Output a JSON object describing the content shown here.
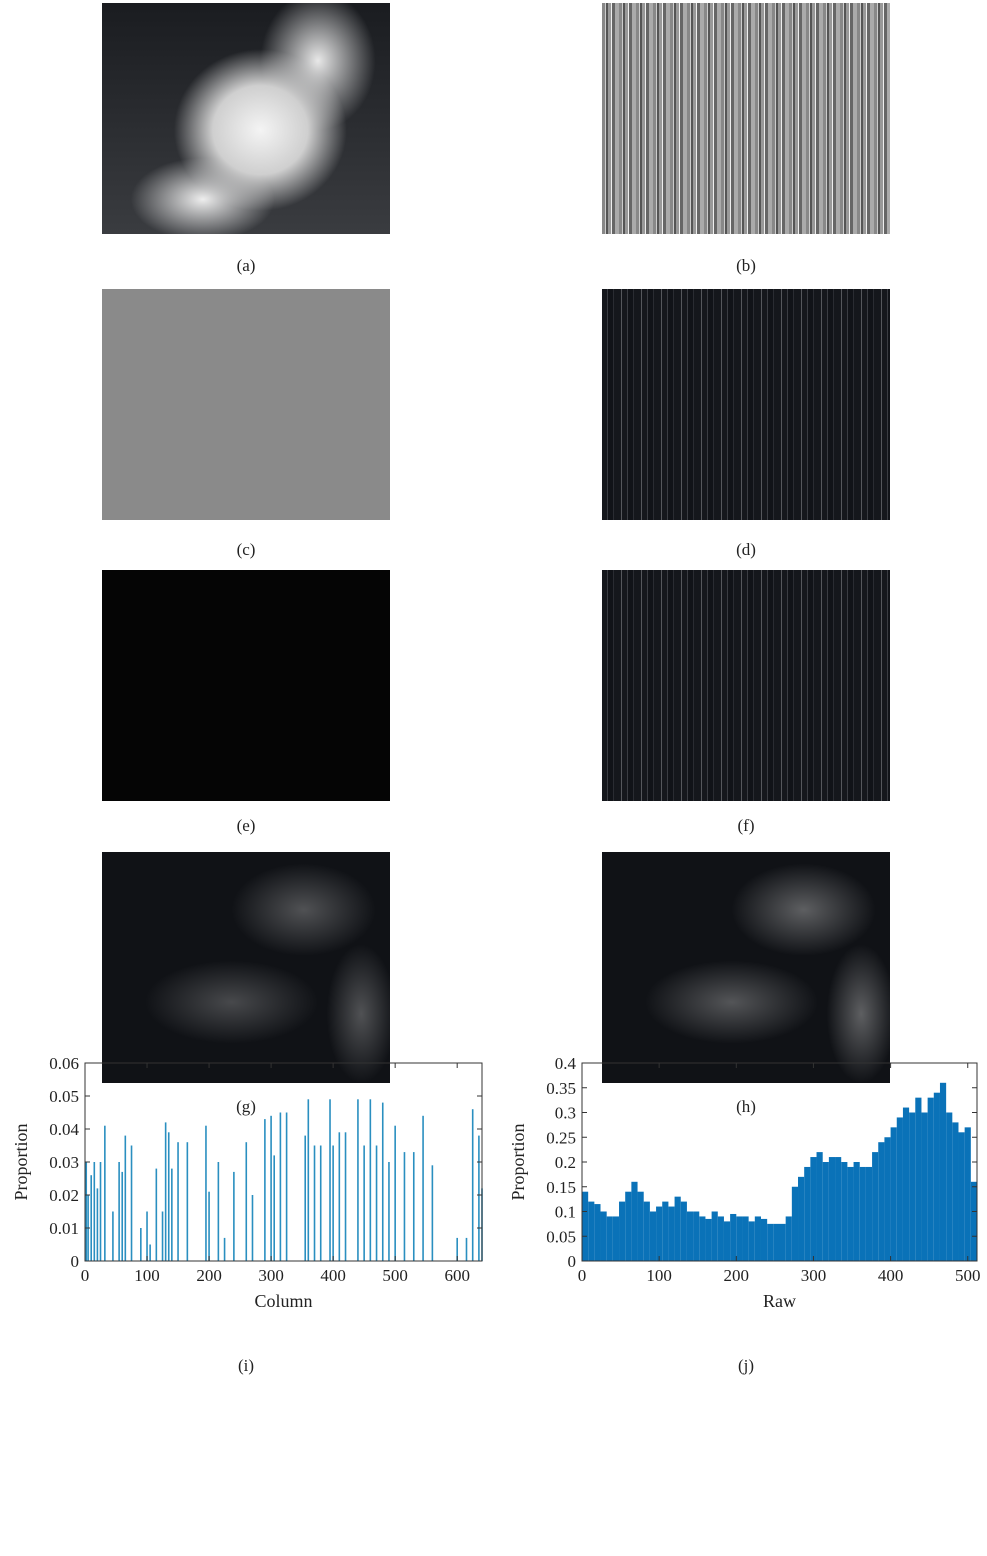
{
  "panels": [
    {
      "caption": "(a)"
    },
    {
      "caption": "(b)"
    },
    {
      "caption": "(c)"
    },
    {
      "caption": "(d)"
    },
    {
      "caption": "(e)"
    },
    {
      "caption": "(f)"
    },
    {
      "caption": "(g)"
    },
    {
      "caption": "(h)"
    }
  ],
  "chart_data": [
    {
      "type": "bar",
      "caption": "(i)",
      "xlabel": "Column",
      "ylabel": "Proportion",
      "color": "#2a8fc0",
      "x": [
        2,
        5,
        10,
        15,
        20,
        25,
        32,
        45,
        55,
        60,
        65,
        75,
        90,
        100,
        105,
        115,
        125,
        130,
        135,
        140,
        150,
        165,
        195,
        200,
        215,
        225,
        240,
        260,
        270,
        290,
        300,
        305,
        315,
        325,
        355,
        360,
        370,
        380,
        395,
        400,
        410,
        420,
        440,
        450,
        460,
        470,
        480,
        490,
        500,
        515,
        530,
        545,
        560,
        600,
        615,
        625,
        635,
        640
      ],
      "values": [
        0.03,
        0.02,
        0.026,
        0.03,
        0.022,
        0.03,
        0.041,
        0.015,
        0.03,
        0.027,
        0.038,
        0.035,
        0.01,
        0.015,
        0.005,
        0.028,
        0.015,
        0.042,
        0.039,
        0.028,
        0.036,
        0.036,
        0.041,
        0.021,
        0.03,
        0.007,
        0.027,
        0.036,
        0.02,
        0.043,
        0.044,
        0.032,
        0.045,
        0.045,
        0.038,
        0.049,
        0.035,
        0.035,
        0.049,
        0.035,
        0.039,
        0.039,
        0.049,
        0.035,
        0.049,
        0.035,
        0.048,
        0.03,
        0.041,
        0.033,
        0.033,
        0.044,
        0.029,
        0.007,
        0.007,
        0.046,
        0.038,
        0.022
      ],
      "xlim": [
        0,
        640
      ],
      "xticks": [
        0,
        100,
        200,
        300,
        400,
        500,
        600
      ],
      "ylim": [
        0,
        0.06
      ],
      "yticks": [
        0,
        0.01,
        0.02,
        0.03,
        0.04,
        0.05,
        0.06
      ]
    },
    {
      "type": "bar",
      "caption": "(j)",
      "xlabel": "Raw",
      "ylabel": "Proportion",
      "color": "#0a72b8",
      "x": [
        0,
        8,
        16,
        24,
        32,
        40,
        48,
        56,
        64,
        72,
        80,
        88,
        96,
        104,
        112,
        120,
        128,
        136,
        144,
        152,
        160,
        168,
        176,
        184,
        192,
        200,
        208,
        216,
        224,
        232,
        240,
        248,
        256,
        264,
        272,
        280,
        288,
        296,
        304,
        312,
        320,
        328,
        336,
        344,
        352,
        360,
        368,
        376,
        384,
        392,
        400,
        408,
        416,
        424,
        432,
        440,
        448,
        456,
        464,
        472,
        480,
        488,
        496,
        504
      ],
      "values": [
        0.14,
        0.12,
        0.115,
        0.1,
        0.09,
        0.09,
        0.12,
        0.14,
        0.16,
        0.14,
        0.12,
        0.1,
        0.11,
        0.12,
        0.11,
        0.13,
        0.12,
        0.1,
        0.1,
        0.09,
        0.085,
        0.1,
        0.09,
        0.08,
        0.095,
        0.09,
        0.09,
        0.08,
        0.09,
        0.085,
        0.075,
        0.075,
        0.075,
        0.09,
        0.15,
        0.17,
        0.19,
        0.21,
        0.22,
        0.2,
        0.21,
        0.21,
        0.2,
        0.19,
        0.2,
        0.19,
        0.19,
        0.22,
        0.24,
        0.25,
        0.27,
        0.29,
        0.31,
        0.3,
        0.33,
        0.3,
        0.33,
        0.34,
        0.36,
        0.3,
        0.28,
        0.26,
        0.27,
        0.16
      ],
      "xlim": [
        0,
        512
      ],
      "xticks": [
        0,
        100,
        200,
        300,
        400,
        500
      ],
      "ylim": [
        0,
        0.4
      ],
      "yticks": [
        0,
        0.05,
        0.1,
        0.15,
        0.2,
        0.25,
        0.3,
        0.35,
        0.4
      ]
    }
  ]
}
